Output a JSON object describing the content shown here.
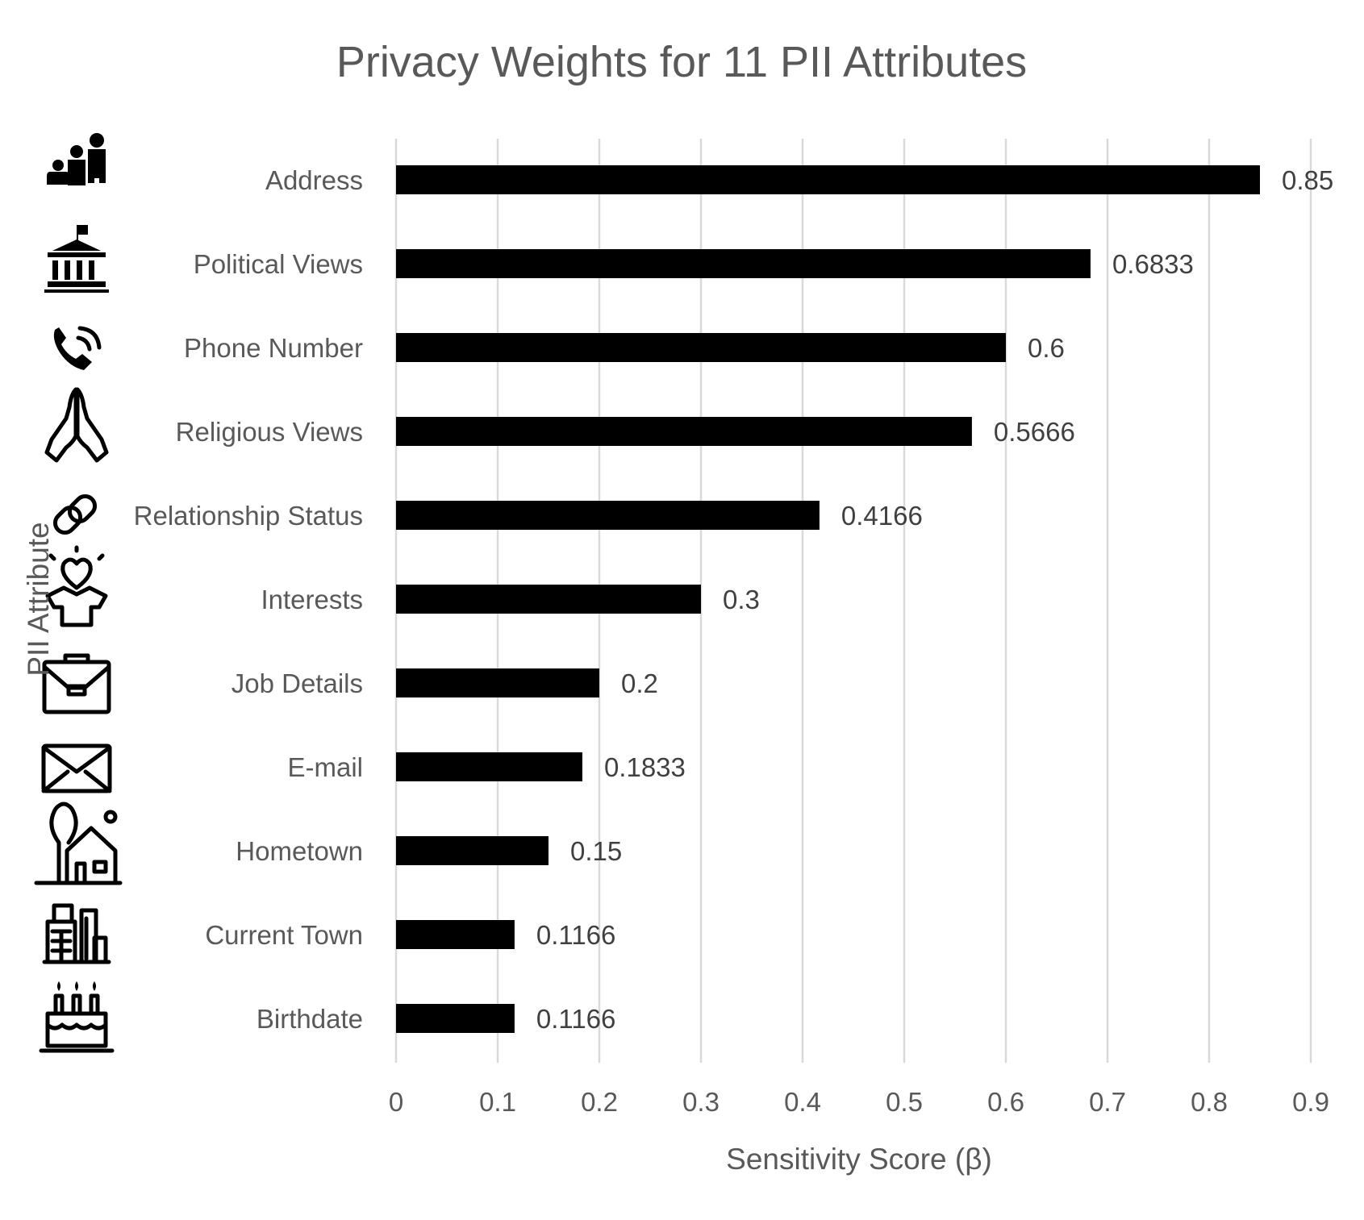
{
  "chart_data": {
    "type": "bar",
    "orientation": "horizontal",
    "title": "Privacy Weights for 11 PII Attributes",
    "xlabel": "Sensitivity Score (β)",
    "ylabel": "PII Attribute",
    "xlim": [
      0,
      0.9
    ],
    "xticks": [
      "0",
      "0.1",
      "0.2",
      "0.3",
      "0.4",
      "0.5",
      "0.6",
      "0.7",
      "0.8",
      "0.9"
    ],
    "grid": "vertical",
    "legend": "none",
    "bar_color": "#000000",
    "categories": [
      "Address",
      "Political Views",
      "Phone Number",
      "Religious Views",
      "Relationship Status",
      "Interests",
      "Job Details",
      "E-mail",
      "Hometown",
      "Current Town",
      "Birthdate"
    ],
    "values": [
      0.85,
      0.6833,
      0.6,
      0.5666,
      0.4166,
      0.3,
      0.2,
      0.1833,
      0.15,
      0.1166,
      0.1166
    ],
    "value_labels": [
      "0.85",
      "0.6833",
      "0.6",
      "0.5666",
      "0.4166",
      "0.3",
      "0.2",
      "0.1833",
      "0.15",
      "0.1166",
      "0.1166"
    ],
    "icons": [
      "family-icon",
      "government-building-icon",
      "phone-icon",
      "praying-hands-icon",
      "link-icon",
      "heart-person-icon",
      "briefcase-icon",
      "envelope-icon",
      "house-tree-icon",
      "city-buildings-icon",
      "birthday-cake-icon"
    ]
  }
}
